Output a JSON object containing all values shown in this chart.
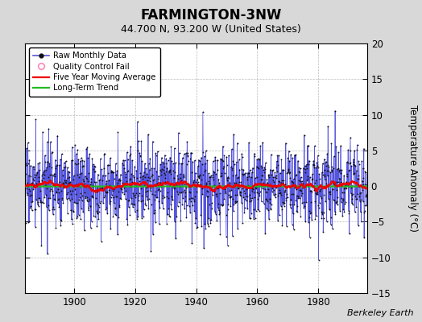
{
  "title": "FARMINGTON-3NW",
  "subtitle": "44.700 N, 93.200 W (United States)",
  "ylabel": "Temperature Anomaly (°C)",
  "attribution": "Berkeley Earth",
  "xlim": [
    1884,
    1996
  ],
  "ylim": [
    -15,
    20
  ],
  "yticks": [
    -15,
    -10,
    -5,
    0,
    5,
    10,
    15,
    20
  ],
  "xticks": [
    1900,
    1920,
    1940,
    1960,
    1980
  ],
  "year_start": 1884,
  "year_end": 1995,
  "bg_color": "#d8d8d8",
  "plot_bg_color": "#ffffff",
  "raw_line_color": "#5555dd",
  "raw_dot_color": "#111111",
  "ma_color": "#ee0000",
  "trend_color": "#22bb22",
  "qc_color": "#ff88bb",
  "seed": 17,
  "amplitude": 2.8,
  "ma_window": 60,
  "trend_value": -0.05
}
